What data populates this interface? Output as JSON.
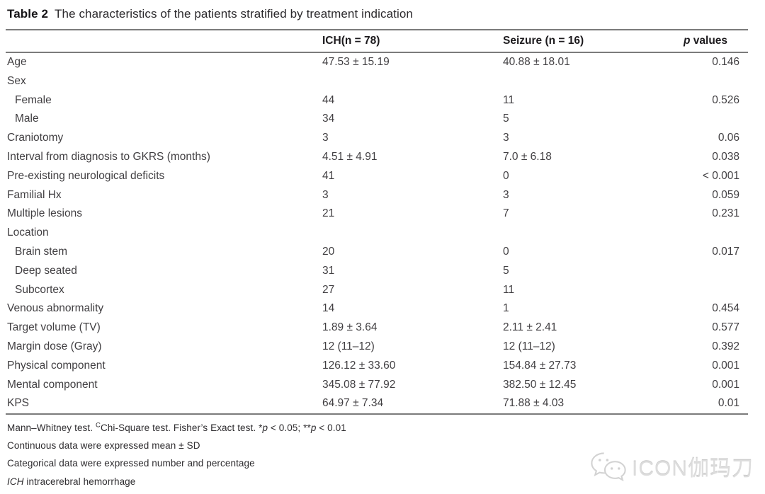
{
  "title": {
    "label": "Table 2",
    "caption": "The characteristics of the patients stratified by treatment indication"
  },
  "columns": {
    "col1": "",
    "ich": "ICH(n = 78)",
    "seizure": "Seizure (n = 16)",
    "p_italic": "p",
    "p_rest": " values"
  },
  "rows": [
    {
      "label": "Age",
      "indent": false,
      "ich": "47.53 ± 15.19",
      "seizure": "40.88 ± 18.01",
      "p": "0.146"
    },
    {
      "label": "Sex",
      "indent": false,
      "ich": "",
      "seizure": "",
      "p": ""
    },
    {
      "label": "Female",
      "indent": true,
      "ich": "44",
      "seizure": "11",
      "p": "0.526"
    },
    {
      "label": "Male",
      "indent": true,
      "ich": "34",
      "seizure": "5",
      "p": ""
    },
    {
      "label": "Craniotomy",
      "indent": false,
      "ich": "3",
      "seizure": "3",
      "p": "0.06"
    },
    {
      "label": "Interval from diagnosis to GKRS (months)",
      "indent": false,
      "ich": "4.51 ± 4.91",
      "seizure": "7.0 ± 6.18",
      "p": "0.038"
    },
    {
      "label": "Pre-existing neurological deficits",
      "indent": false,
      "ich": "41",
      "seizure": "0",
      "p": "< 0.001"
    },
    {
      "label": "Familial Hx",
      "indent": false,
      "ich": "3",
      "seizure": "3",
      "p": "0.059"
    },
    {
      "label": "Multiple lesions",
      "indent": false,
      "ich": "21",
      "seizure": "7",
      "p": "0.231"
    },
    {
      "label": "Location",
      "indent": false,
      "ich": "",
      "seizure": "",
      "p": ""
    },
    {
      "label": "Brain stem",
      "indent": true,
      "ich": "20",
      "seizure": "0",
      "p": "0.017"
    },
    {
      "label": "Deep seated",
      "indent": true,
      "ich": "31",
      "seizure": "5",
      "p": ""
    },
    {
      "label": "Subcortex",
      "indent": true,
      "ich": "27",
      "seizure": "11",
      "p": ""
    },
    {
      "label": "Venous abnormality",
      "indent": false,
      "ich": "14",
      "seizure": "1",
      "p": "0.454"
    },
    {
      "label": "Target volume (TV)",
      "indent": false,
      "ich": "1.89 ± 3.64",
      "seizure": "2.11 ± 2.41",
      "p": "0.577"
    },
    {
      "label": "Margin dose (Gray)",
      "indent": false,
      "ich": "12 (11–12)",
      "seizure": "12 (11–12)",
      "p": "0.392"
    },
    {
      "label": "Physical component",
      "indent": false,
      "ich": "126.12 ± 33.60",
      "seizure": "154.84 ± 27.73",
      "p": "0.001"
    },
    {
      "label": "Mental component",
      "indent": false,
      "ich": "345.08 ± 77.92",
      "seizure": "382.50 ± 12.45",
      "p": "0.001"
    },
    {
      "label": "KPS",
      "indent": false,
      "ich": "64.97 ± 7.34",
      "seizure": "71.88 ± 4.03",
      "p": "0.01"
    }
  ],
  "footnotes": {
    "fn1": {
      "a": "Mann–Whitney test. ",
      "sup": "C",
      "b": "Chi-Square test. Fisher’s Exact test. *",
      "p1": "p",
      "c": " < 0.05; **",
      "p2": "p",
      "d": " < 0.01"
    },
    "fn2": "Continuous data were expressed mean ± SD",
    "fn3": "Categorical data were expressed number and percentage",
    "fn4": {
      "italic": "ICH",
      "rest": " intracerebral hemorrhage"
    }
  },
  "watermark": {
    "text": "ICON伽玛刀",
    "icon": "wechat-icon"
  },
  "colors": {
    "rule_gray": "#7b7b7b",
    "body_text": "#413f42",
    "watermark_gray": "#dcdcdc"
  }
}
